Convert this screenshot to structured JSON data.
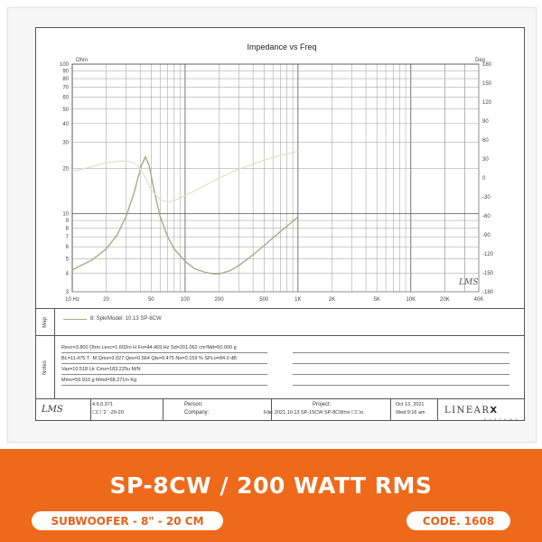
{
  "chart_data": {
    "type": "line",
    "title": "Impedance vs Freq",
    "y_left_unit": "Ohm",
    "y_right_unit": "Deg",
    "x_scale": "log",
    "y_left_scale": "log",
    "xlim": [
      10,
      40000
    ],
    "ylim_left": [
      3,
      100
    ],
    "ylim_right": [
      -180,
      180
    ],
    "x_tick_labels": [
      "10 Hz",
      "20",
      "50",
      "100",
      "200",
      "500",
      "1K",
      "2K",
      "5K",
      "10K",
      "20K",
      "40K"
    ],
    "x_tick_values": [
      10,
      20,
      50,
      100,
      200,
      500,
      1000,
      2000,
      5000,
      10000,
      20000,
      40000
    ],
    "y_left_tick_labels": [
      "100",
      "90",
      "80",
      "70",
      "60",
      "50",
      "40",
      "30",
      "20",
      "10",
      "9",
      "8",
      "7",
      "6",
      "5",
      "4",
      "3"
    ],
    "y_left_tick_values": [
      100,
      90,
      80,
      70,
      60,
      50,
      40,
      30,
      20,
      10,
      9,
      8,
      7,
      6,
      5,
      4,
      3
    ],
    "y_right_tick_values": [
      180,
      150,
      120,
      90,
      60,
      30,
      0,
      -30,
      -60,
      -90,
      -120,
      -150,
      -180
    ],
    "grid": true,
    "series": [
      {
        "axis": "left",
        "color": "#a8aa84",
        "x": [
          10,
          15,
          20,
          25,
          30,
          35,
          38,
          41,
          44.5,
          48,
          52,
          56,
          60,
          70,
          80,
          100,
          120,
          150,
          180,
          200,
          250,
          300,
          400,
          500,
          700,
          1000
        ],
        "y": [
          4.2,
          4.9,
          5.8,
          7.2,
          9.6,
          13.5,
          17.0,
          21.0,
          24.0,
          21.0,
          15.5,
          12.0,
          9.6,
          7.0,
          5.8,
          4.8,
          4.3,
          4.05,
          3.95,
          3.95,
          4.15,
          4.5,
          5.3,
          6.1,
          7.6,
          9.5
        ]
      },
      {
        "axis": "right",
        "color": "#dedfcc",
        "x": [
          10,
          15,
          20,
          25,
          30,
          35,
          40,
          44.5,
          48,
          52,
          60,
          70,
          80,
          100,
          150,
          200,
          300,
          500,
          700,
          1000
        ],
        "y": [
          10,
          18,
          24,
          26,
          27,
          24,
          15,
          0,
          -12,
          -22,
          -34,
          -38,
          -36,
          -28,
          -12,
          0,
          14,
          28,
          36,
          42
        ]
      }
    ]
  },
  "legend": {
    "entry": "8: SpkrModel: 10.13  SP-8CW"
  },
  "side_labels": {
    "map": "Map",
    "notes": "Notes"
  },
  "notes": {
    "line1": "Revc=3.800 Ohm  Levc=1.602m H  Fo=44.469 Hz  Sd=201.062 cm²Md=50.000 g",
    "line2": "BL=11.475 T· M  Qms=3.027  Qes=0.564  Qts=0.475  No=0.159 %  SPLo=84.0 dB",
    "line3": "Vas=10.518 Ltr  Cms=183.225u M/N",
    "line4": "Mms=59.910 g  Mmd=58.271m Kg"
  },
  "footer": {
    "logo": "LMS",
    "version": "4.6.0.371",
    "version_date": "☐☐ '2´ -29-20",
    "person_label": "Person:",
    "company_label": "Company:",
    "project_label": "Project:",
    "file_text": "File: 2021.10.13 SP-15CW  SP-8CW±oi  ☐☐o.",
    "date": "Oct 13, 2021",
    "weekday_time": "Wed  9:16 am",
    "brand": "LINEAR",
    "brand_x": "X",
    "brand_sub": "S Y S T E M S"
  },
  "watermark": "LMS",
  "banner": {
    "title": "SP-8CW / 200 WATT RMS",
    "subtitle": "SUBWOOFER - 8\" - 20 CM",
    "code": "CODE. 1608",
    "color": "#ee6a1a"
  }
}
